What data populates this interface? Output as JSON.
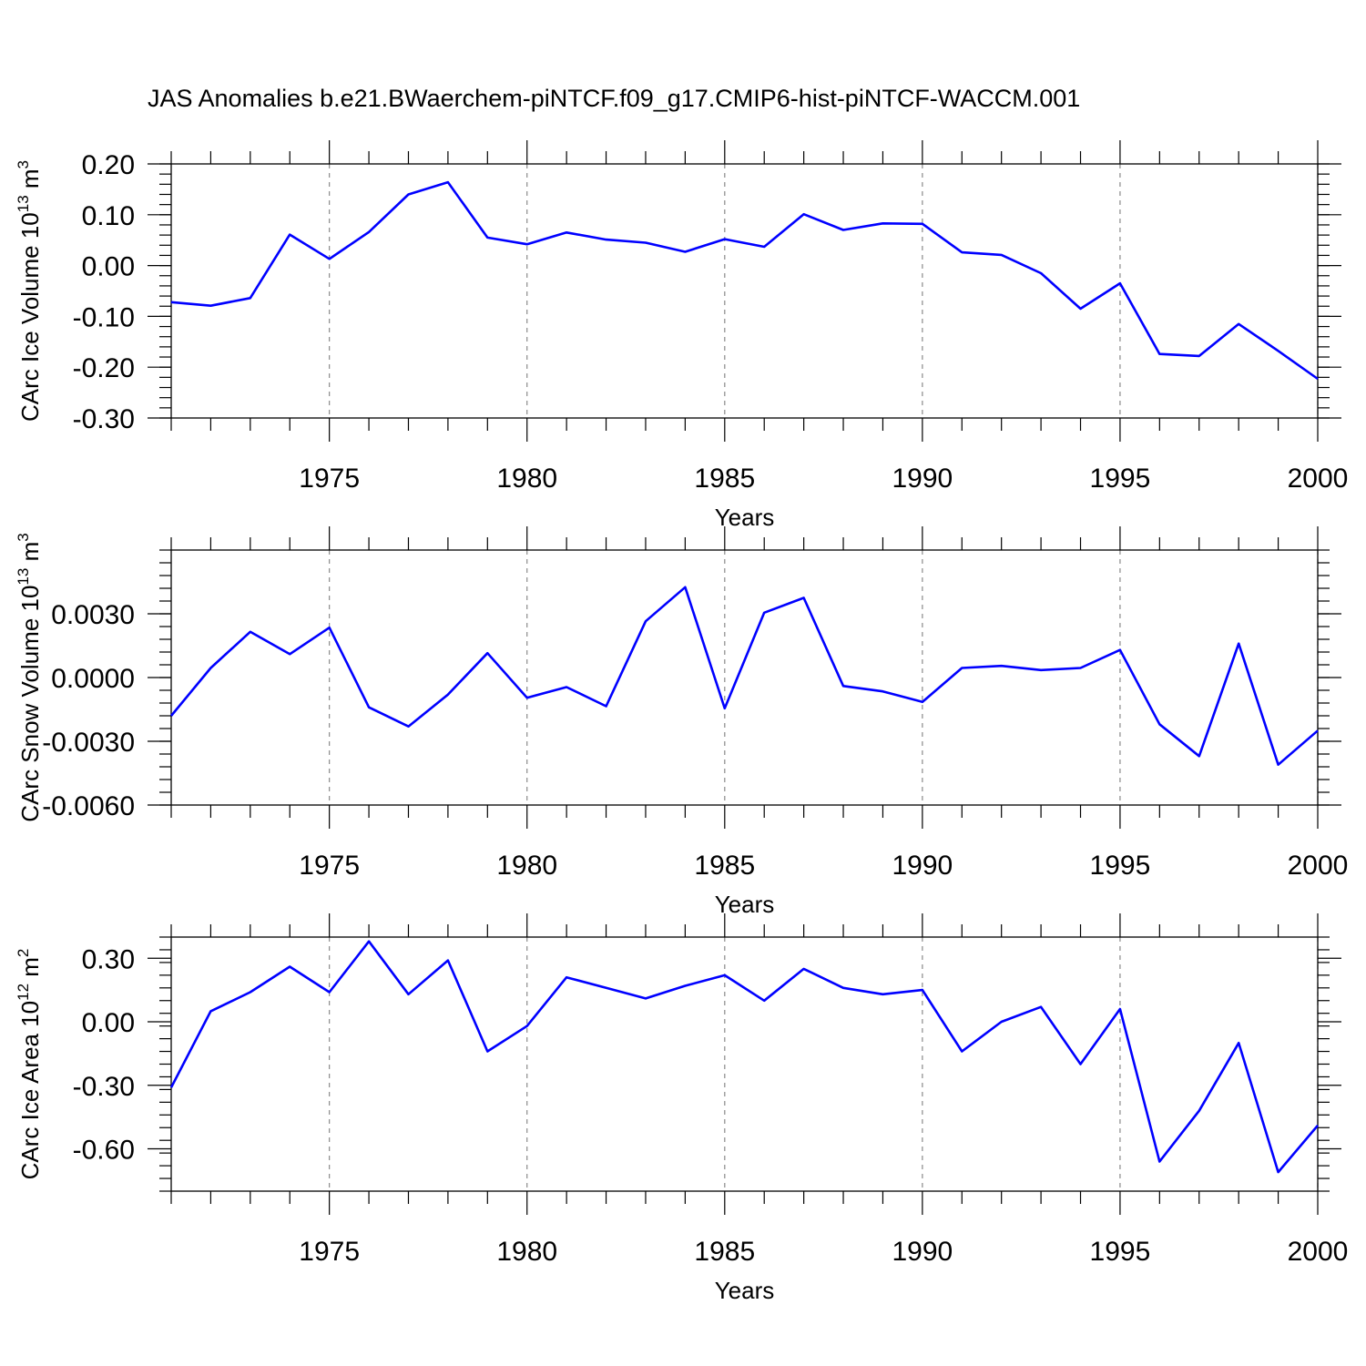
{
  "title": "JAS Anomalies b.e21.BWaerchem-piNTCF.f09_g17.CMIP6-hist-piNTCF-WACCM.001",
  "colors": {
    "line": "#0000ff",
    "grid": "#8a8a8a",
    "axes": "#000000"
  },
  "chart_data": [
    {
      "type": "line",
      "title": "",
      "xlabel": "Years",
      "ylabel": "CArc Ice Volume 10",
      "ylabel_exponent": "13",
      "ylabel_unit": " m",
      "ylabel_unit_exponent": "3",
      "xlim": [
        1971,
        2000
      ],
      "ylim": [
        -0.3,
        0.2
      ],
      "yticks": [
        0.2,
        0.1,
        0.0,
        -0.1,
        -0.2,
        -0.3
      ],
      "ytick_labels": [
        "0.20",
        "0.10",
        "0.00",
        "-0.10",
        "-0.20",
        "-0.30"
      ],
      "yminor_step": 0.02,
      "xticks": [
        1975,
        1980,
        1985,
        1990,
        1995,
        2000
      ],
      "xtick_labels": [
        "1975",
        "1980",
        "1985",
        "1990",
        "1995",
        "2000"
      ],
      "grid": "vertical dashed at major x ticks",
      "x": [
        1971,
        1972,
        1973,
        1974,
        1975,
        1976,
        1977,
        1978,
        1979,
        1980,
        1981,
        1982,
        1983,
        1984,
        1985,
        1986,
        1987,
        1988,
        1989,
        1990,
        1991,
        1992,
        1993,
        1994,
        1995,
        1996,
        1997,
        1998,
        1999,
        2000
      ],
      "series": [
        {
          "values": [
            -0.072,
            -0.079,
            -0.064,
            0.061,
            0.013,
            0.066,
            0.14,
            0.164,
            0.055,
            0.042,
            0.065,
            0.051,
            0.045,
            0.027,
            0.052,
            0.037,
            0.101,
            0.07,
            0.083,
            0.082,
            0.026,
            0.021,
            -0.015,
            -0.085,
            -0.035,
            -0.174,
            -0.178,
            -0.115,
            -0.168,
            -0.223
          ]
        }
      ]
    },
    {
      "type": "line",
      "title": "",
      "xlabel": "Years",
      "ylabel": "CArc Snow Volume 10",
      "ylabel_exponent": "13",
      "ylabel_unit": " m",
      "ylabel_unit_exponent": "3",
      "xlim": [
        1971,
        2000
      ],
      "ylim": [
        -0.006,
        0.006
      ],
      "yticks": [
        0.003,
        0.0,
        -0.003,
        -0.006
      ],
      "ytick_labels": [
        "0.0030",
        "0.0000",
        "-0.0030",
        "-0.0060"
      ],
      "yminor_step": 0.0006,
      "xticks": [
        1975,
        1980,
        1985,
        1990,
        1995,
        2000
      ],
      "xtick_labels": [
        "1975",
        "1980",
        "1985",
        "1990",
        "1995",
        "2000"
      ],
      "grid": "vertical dashed at major x ticks",
      "x": [
        1971,
        1972,
        1973,
        1974,
        1975,
        1976,
        1977,
        1978,
        1979,
        1980,
        1981,
        1982,
        1983,
        1984,
        1985,
        1986,
        1987,
        1988,
        1989,
        1990,
        1991,
        1992,
        1993,
        1994,
        1995,
        1996,
        1997,
        1998,
        1999,
        2000
      ],
      "series": [
        {
          "values": [
            -0.0018,
            0.00045,
            0.00215,
            0.0011,
            0.00235,
            -0.0014,
            -0.0023,
            -0.0008,
            0.00115,
            -0.00095,
            -0.00045,
            -0.00135,
            0.00265,
            0.00425,
            -0.00145,
            0.00305,
            0.00375,
            -0.0004,
            -0.00065,
            -0.00115,
            0.00045,
            0.00055,
            0.00035,
            0.00045,
            0.0013,
            -0.0022,
            -0.0037,
            0.0016,
            -0.0041,
            -0.0025
          ]
        }
      ]
    },
    {
      "type": "line",
      "title": "",
      "xlabel": "Years",
      "ylabel": "CArc Ice Area 10",
      "ylabel_exponent": "12",
      "ylabel_unit": " m",
      "ylabel_unit_exponent": "2",
      "xlim": [
        1971,
        2000
      ],
      "ylim": [
        -0.8,
        0.4
      ],
      "yticks": [
        0.3,
        0.0,
        -0.3,
        -0.6
      ],
      "ytick_labels": [
        "0.30",
        "0.00",
        "-0.30",
        "-0.60"
      ],
      "yminor_step": 0.06,
      "xticks": [
        1975,
        1980,
        1985,
        1990,
        1995,
        2000
      ],
      "xtick_labels": [
        "1975",
        "1980",
        "1985",
        "1990",
        "1995",
        "2000"
      ],
      "grid": "vertical dashed at major x ticks",
      "x": [
        1971,
        1972,
        1973,
        1974,
        1975,
        1976,
        1977,
        1978,
        1979,
        1980,
        1981,
        1982,
        1983,
        1984,
        1985,
        1986,
        1987,
        1988,
        1989,
        1990,
        1991,
        1992,
        1993,
        1994,
        1995,
        1996,
        1997,
        1998,
        1999,
        2000
      ],
      "series": [
        {
          "values": [
            -0.31,
            0.05,
            0.14,
            0.26,
            0.14,
            0.38,
            0.13,
            0.29,
            -0.14,
            -0.02,
            0.21,
            0.16,
            0.11,
            0.17,
            0.22,
            0.1,
            0.25,
            0.16,
            0.13,
            0.15,
            -0.14,
            0.0,
            0.07,
            -0.2,
            0.06,
            -0.66,
            -0.42,
            -0.1,
            -0.71,
            -0.49
          ]
        }
      ]
    }
  ]
}
